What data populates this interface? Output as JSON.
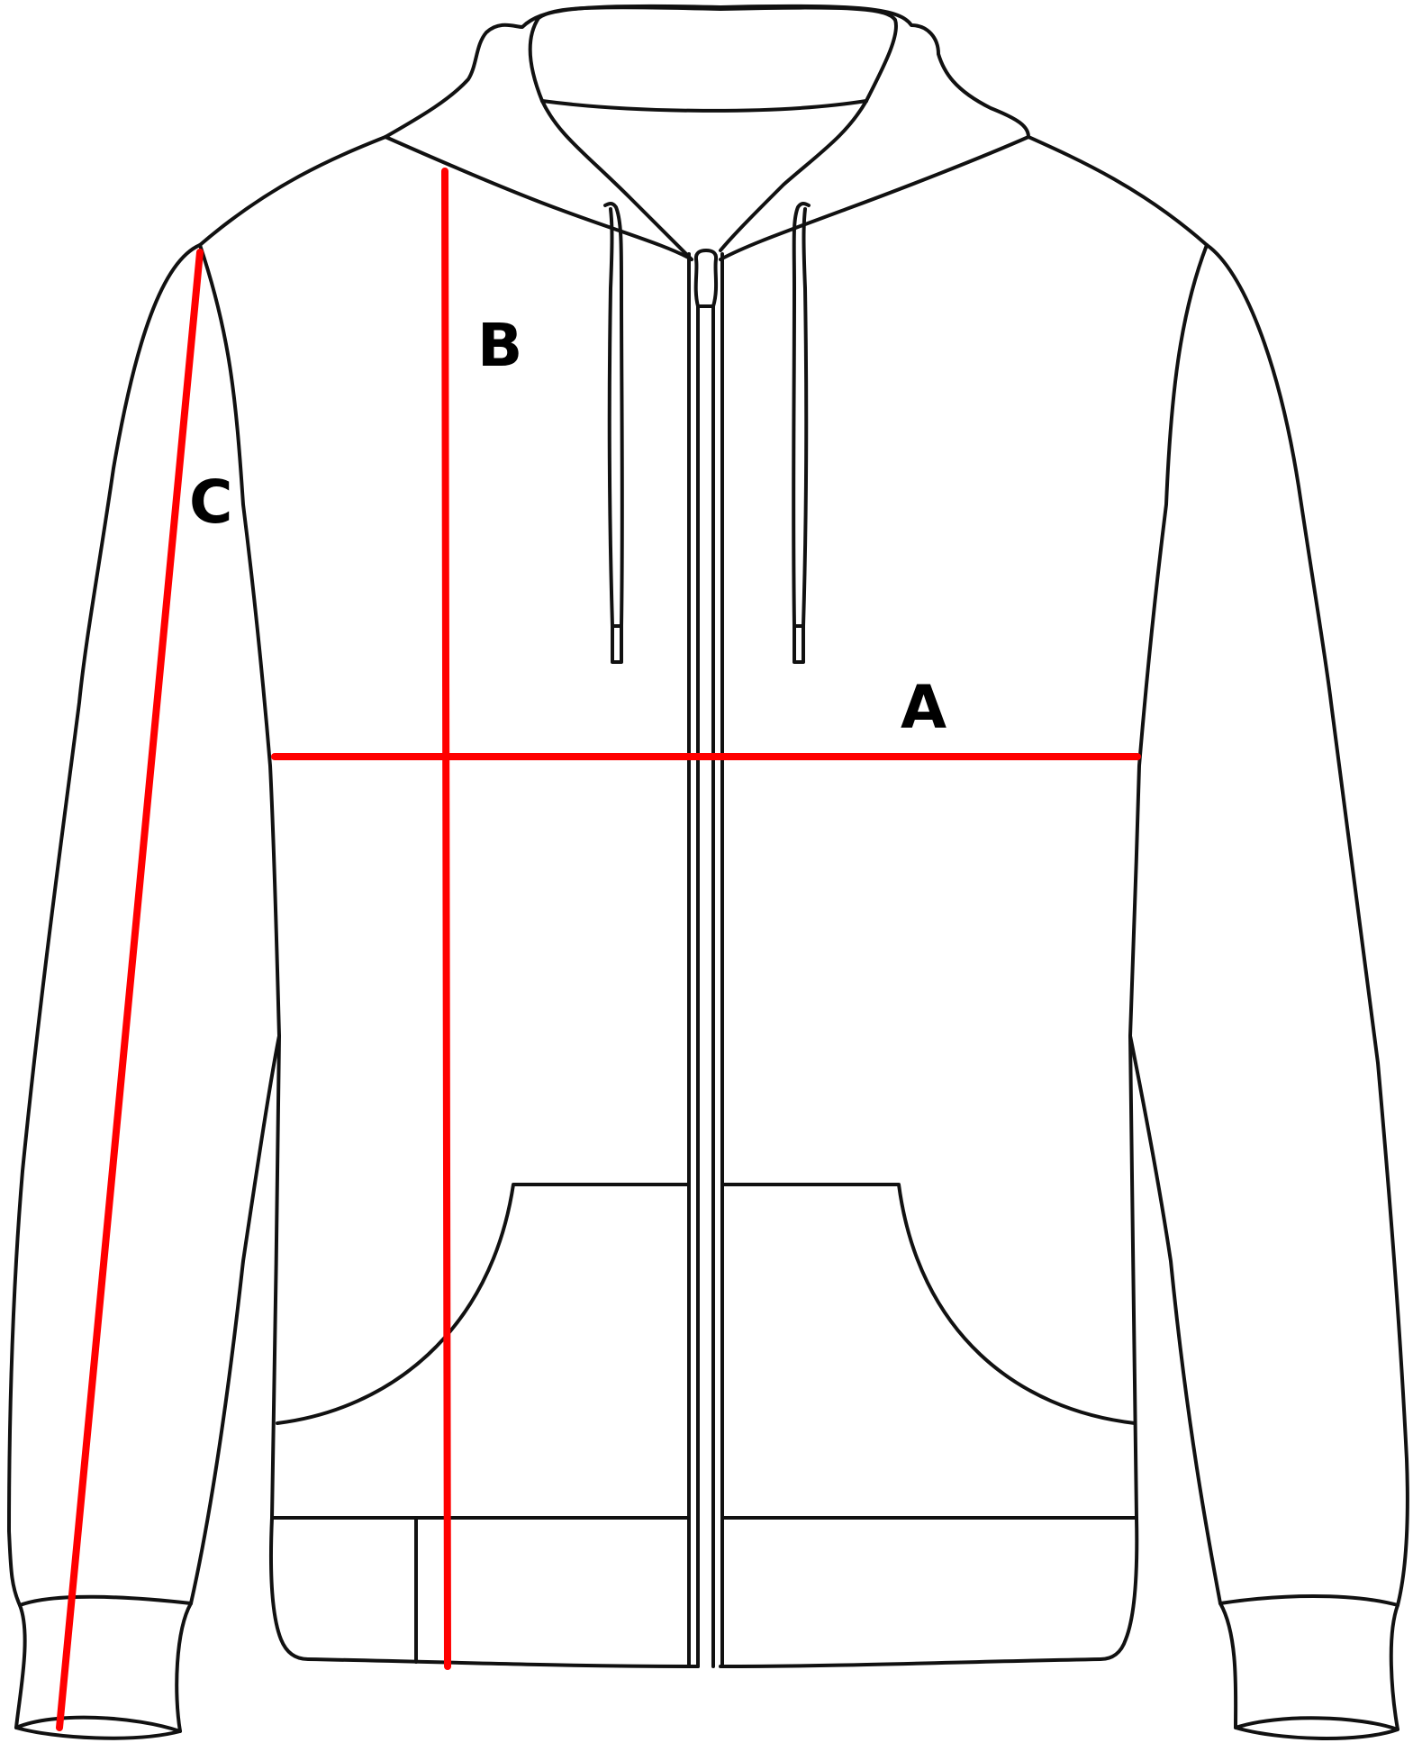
{
  "colors": {
    "outline": "#111111",
    "measurement": "#ff0000",
    "background": "#ffffff"
  },
  "measurements": {
    "chest": {
      "label": "A"
    },
    "body_length": {
      "label": "B"
    },
    "sleeve_length": {
      "label": "C"
    }
  }
}
